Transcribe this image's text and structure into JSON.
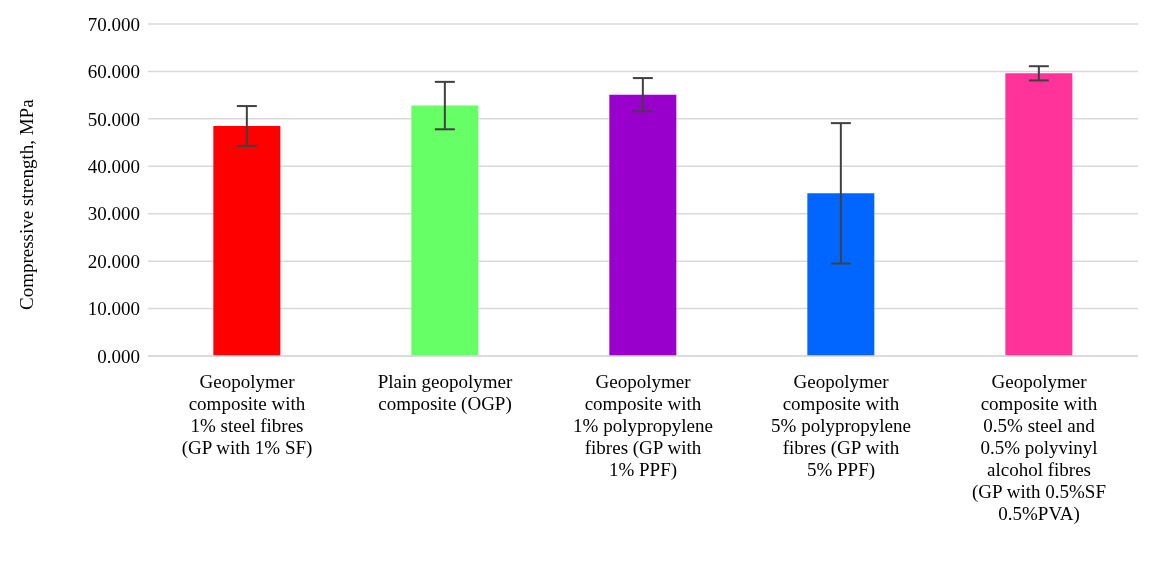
{
  "chart_data": {
    "type": "bar",
    "ylabel": "Compressive strength, MPa",
    "categories": [
      "Geopolymer composite with 1% steel fibres (GP with 1% SF)",
      "Plain geopolymer composite (OGP)",
      "Geopolymer composite with 1% polypropylene fibres (GP with 1% PPF)",
      "Geopolymer composite with 5% polypropylene fibres (GP with 5% PPF)",
      "Geopolymer composite with 0.5% steel and 0.5% polyvinyl alcohol fibres (GP with 0.5%SF 0.5%PVA)"
    ],
    "values": [
      48.5,
      52.8,
      55.1,
      34.3,
      59.6
    ],
    "errors": [
      4.2,
      5.0,
      3.5,
      14.8,
      1.5
    ],
    "colors": [
      "#ff0000",
      "#66ff66",
      "#9900cc",
      "#0066ff",
      "#ff3399"
    ],
    "ylim": [
      0,
      70
    ],
    "yticks": [
      {
        "value": 0,
        "label": "0.000"
      },
      {
        "value": 10,
        "label": "10.000"
      },
      {
        "value": 20,
        "label": "20.000"
      },
      {
        "value": 30,
        "label": "30.000"
      },
      {
        "value": 40,
        "label": "40.000"
      },
      {
        "value": 50,
        "label": "50.000"
      },
      {
        "value": 60,
        "label": "60.000"
      },
      {
        "value": 70,
        "label": "70.000"
      }
    ],
    "grid": "y",
    "legend": false
  }
}
